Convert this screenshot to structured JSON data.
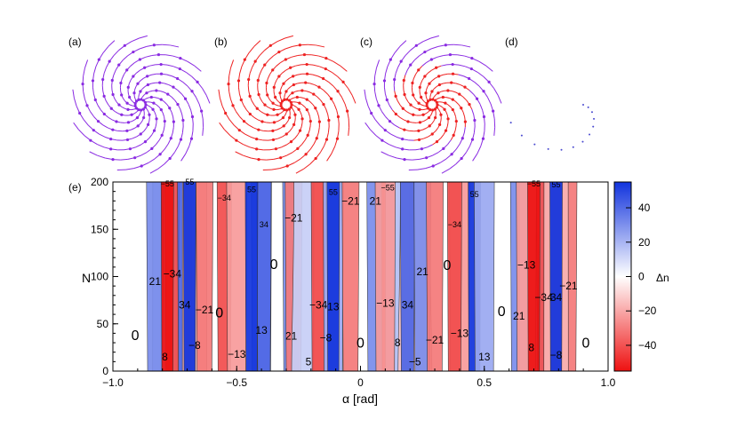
{
  "panels": [
    {
      "label": "(a)",
      "style": "spiral",
      "color": "#8a2be2"
    },
    {
      "label": "(b)",
      "style": "spiral",
      "color": "#ee2222"
    },
    {
      "label": "(c)",
      "style": "mixed",
      "color": "#ee2222",
      "color2": "#8a2be2"
    },
    {
      "label": "(d)",
      "style": "dots",
      "color": "#4a4ad0",
      "color2": "#ee2222"
    }
  ],
  "chart_data": {
    "type": "heatmap",
    "panel_label": "(e)",
    "xlabel": "α [rad]",
    "ylabel": "N",
    "xlim": [
      -1.0,
      1.0
    ],
    "ylim": [
      0,
      200
    ],
    "xticks": [
      "−1.0",
      "−0.5",
      "0",
      "0.5",
      "1.0"
    ],
    "yticks": [
      "0",
      "50",
      "100",
      "150",
      "200"
    ],
    "colorbar": {
      "label": "Δn",
      "range": [
        -55,
        55
      ],
      "ticks": [
        "40",
        "20",
        "0",
        "−20",
        "−40"
      ],
      "tick_values": [
        40,
        20,
        0,
        -20,
        -40
      ],
      "colors": {
        "negative": "#ee1111",
        "zero": "#ffffff",
        "positive": "#1133dd"
      }
    },
    "regions": [
      {
        "text": "0",
        "x": -0.91,
        "y": 38,
        "value": 0
      },
      {
        "text": "8",
        "x": -0.79,
        "y": 15,
        "value": 8
      },
      {
        "text": "21",
        "x": -0.83,
        "y": 95,
        "value": 21
      },
      {
        "text": "−34",
        "x": -0.76,
        "y": 103,
        "value": -34
      },
      {
        "text": "34",
        "x": -0.71,
        "y": 70,
        "value": 34
      },
      {
        "text": "−8",
        "x": -0.67,
        "y": 27,
        "value": -8
      },
      {
        "text": "−21",
        "x": -0.63,
        "y": 65,
        "value": -21
      },
      {
        "text": "0",
        "x": -0.57,
        "y": 62,
        "value": 0
      },
      {
        "text": "−55",
        "x": -0.78,
        "y": 198,
        "value": -55
      },
      {
        "text": "55",
        "x": -0.69,
        "y": 200,
        "value": 55
      },
      {
        "text": "−34",
        "x": -0.55,
        "y": 183,
        "value": -34
      },
      {
        "text": "−13",
        "x": -0.5,
        "y": 18,
        "value": -13
      },
      {
        "text": "13",
        "x": -0.4,
        "y": 43,
        "value": 13
      },
      {
        "text": "34",
        "x": -0.39,
        "y": 155,
        "value": 34
      },
      {
        "text": "55",
        "x": -0.44,
        "y": 192,
        "value": 55
      },
      {
        "text": "0",
        "x": -0.35,
        "y": 113,
        "value": 0
      },
      {
        "text": "21",
        "x": -0.28,
        "y": 37,
        "value": 21
      },
      {
        "text": "−21",
        "x": -0.27,
        "y": 162,
        "value": -21
      },
      {
        "text": "5",
        "x": -0.21,
        "y": 10,
        "value": 5
      },
      {
        "text": "−8",
        "x": -0.14,
        "y": 35,
        "value": -8
      },
      {
        "text": "−34",
        "x": -0.17,
        "y": 70,
        "value": -34
      },
      {
        "text": "13",
        "x": -0.11,
        "y": 68,
        "value": 13
      },
      {
        "text": "−21",
        "x": -0.04,
        "y": 180,
        "value": -21
      },
      {
        "text": "55",
        "x": -0.11,
        "y": 189,
        "value": 55
      },
      {
        "text": "0",
        "x": 0.0,
        "y": 30,
        "value": 0
      },
      {
        "text": "21",
        "x": 0.06,
        "y": 180,
        "value": 21
      },
      {
        "text": "−55",
        "x": 0.11,
        "y": 194,
        "value": -55
      },
      {
        "text": "8",
        "x": 0.15,
        "y": 30,
        "value": 8
      },
      {
        "text": "−13",
        "x": 0.1,
        "y": 72,
        "value": -13
      },
      {
        "text": "−5",
        "x": 0.22,
        "y": 10,
        "value": -5
      },
      {
        "text": "34",
        "x": 0.19,
        "y": 70,
        "value": 34
      },
      {
        "text": "21",
        "x": 0.25,
        "y": 105,
        "value": 21
      },
      {
        "text": "−21",
        "x": 0.3,
        "y": 33,
        "value": -21
      },
      {
        "text": "−13",
        "x": 0.4,
        "y": 40,
        "value": -13
      },
      {
        "text": "0",
        "x": 0.35,
        "y": 112,
        "value": 0
      },
      {
        "text": "−34",
        "x": 0.38,
        "y": 155,
        "value": -34
      },
      {
        "text": "55",
        "x": 0.46,
        "y": 187,
        "value": 55
      },
      {
        "text": "13",
        "x": 0.5,
        "y": 15,
        "value": 13
      },
      {
        "text": "0",
        "x": 0.57,
        "y": 63,
        "value": 0
      },
      {
        "text": "21",
        "x": 0.64,
        "y": 58,
        "value": 21
      },
      {
        "text": "8",
        "x": 0.69,
        "y": 25,
        "value": 8
      },
      {
        "text": "−13",
        "x": 0.67,
        "y": 112,
        "value": -13
      },
      {
        "text": "−34",
        "x": 0.74,
        "y": 78,
        "value": -34
      },
      {
        "text": "34",
        "x": 0.79,
        "y": 78,
        "value": 34
      },
      {
        "text": "−21",
        "x": 0.84,
        "y": 90,
        "value": -21
      },
      {
        "text": "−8",
        "x": 0.79,
        "y": 17,
        "value": -8
      },
      {
        "text": "0",
        "x": 0.91,
        "y": 30,
        "value": 0
      },
      {
        "text": "−55",
        "x": 0.7,
        "y": 198,
        "value": -55
      },
      {
        "text": "55",
        "x": 0.79,
        "y": 197,
        "value": 55
      }
    ]
  }
}
